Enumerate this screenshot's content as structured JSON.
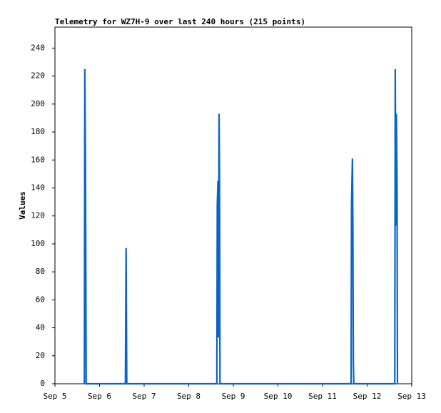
{
  "chart_data": {
    "type": "line",
    "title": "Telemetry for WZ7H-9 over last 240 hours (215 points)",
    "y_label": "Values",
    "x": [
      5.66,
      5.67,
      5.685,
      5.7,
      6.58,
      6.595,
      6.61,
      8.63,
      8.64,
      8.655,
      8.665,
      8.68,
      8.69,
      8.7,
      11.64,
      11.65,
      11.66,
      11.67,
      11.68,
      11.69,
      11.7,
      12.62,
      12.63,
      12.645,
      12.655,
      12.67,
      12.68
    ],
    "series": [
      {
        "color": "#0a64c8",
        "values": [
          0,
          225,
          152,
          0,
          0,
          97,
          0,
          0,
          128,
          145,
          33,
          193,
          145,
          0,
          0,
          128,
          145,
          161,
          113,
          17,
          0,
          0,
          225,
          113,
          193,
          145,
          0
        ]
      }
    ],
    "xlim": [
      5,
      13
    ],
    "xticks": [
      {
        "value": 5,
        "label": "Sep 5"
      },
      {
        "value": 6,
        "label": "Sep 6"
      },
      {
        "value": 7,
        "label": "Sep 7"
      },
      {
        "value": 8,
        "label": "Sep 8"
      },
      {
        "value": 9,
        "label": "Sep 9"
      },
      {
        "value": 10,
        "label": "Sep 10"
      },
      {
        "value": 11,
        "label": "Sep 11"
      },
      {
        "value": 12,
        "label": "Sep 12"
      },
      {
        "value": 13,
        "label": "Sep 13"
      }
    ],
    "ylim": [
      0,
      255
    ],
    "yticks": [
      0,
      20,
      40,
      60,
      80,
      100,
      120,
      140,
      160,
      180,
      200,
      220,
      240
    ]
  }
}
